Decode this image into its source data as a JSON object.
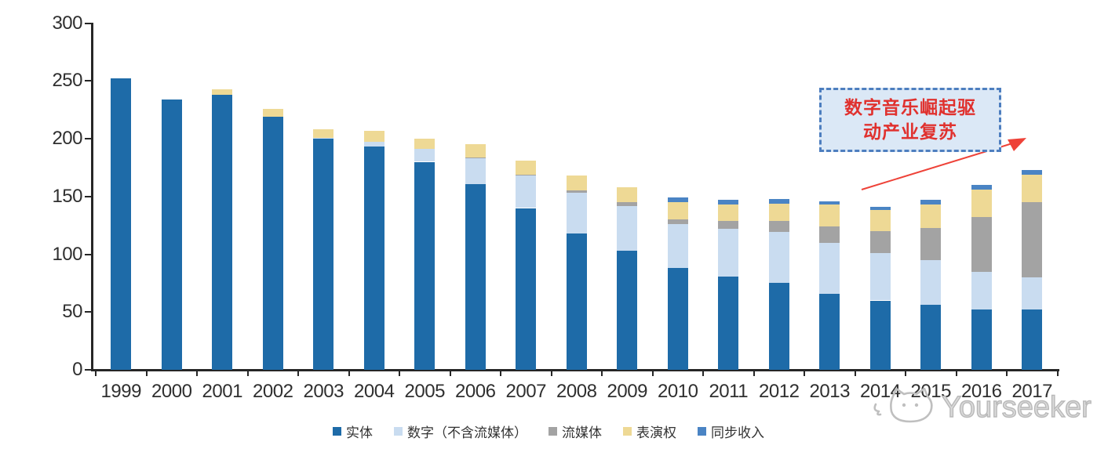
{
  "chart_data": {
    "type": "bar",
    "stacked": true,
    "title": "",
    "categories": [
      "1999",
      "2000",
      "2001",
      "2002",
      "2003",
      "2004",
      "2005",
      "2006",
      "2007",
      "2008",
      "2009",
      "2010",
      "2011",
      "2012",
      "2013",
      "2014",
      "2015",
      "2016",
      "2017"
    ],
    "series": [
      {
        "name": "实体",
        "color": "#1e6ba8",
        "values": [
          252,
          234,
          238,
          219,
          200,
          193,
          180,
          161,
          140,
          118,
          103,
          88,
          81,
          75,
          66,
          60,
          56,
          52,
          52
        ]
      },
      {
        "name": "数字（不含流媒体）",
        "color": "#c9dcf0",
        "values": [
          0,
          0,
          0,
          0,
          1,
          4,
          11,
          22,
          28,
          35,
          39,
          38,
          41,
          44,
          44,
          41,
          39,
          33,
          28
        ]
      },
      {
        "name": "流媒体",
        "color": "#a3a3a3",
        "values": [
          0,
          0,
          0,
          0,
          0,
          0,
          0,
          1,
          1,
          2,
          3,
          4,
          7,
          10,
          14,
          19,
          28,
          47,
          65
        ]
      },
      {
        "name": "表演权",
        "color": "#eed995",
        "values": [
          0,
          0,
          5,
          7,
          7,
          10,
          9,
          11,
          12,
          13,
          13,
          15,
          14,
          15,
          19,
          18,
          20,
          24,
          24
        ]
      },
      {
        "name": "同步收入",
        "color": "#4a84c4",
        "values": [
          0,
          0,
          0,
          0,
          0,
          0,
          0,
          0,
          0,
          0,
          0,
          4,
          4,
          4,
          3,
          3,
          4,
          4,
          4
        ]
      }
    ],
    "xlabel": "",
    "ylabel": "",
    "ylim": [
      0,
      300
    ],
    "yticks": [
      0,
      50,
      100,
      150,
      200,
      250,
      300
    ],
    "grid": false,
    "legend_position": "bottom"
  },
  "annotation": {
    "line1": "数字音乐崛起驱",
    "line2": "动产业复苏",
    "text_color": "#e0312e",
    "box_fill": "#dbe8f6",
    "box_border": "#4d7ebf",
    "arrow_color": "#ee4238"
  },
  "watermark": {
    "text": "Yourseeker",
    "icon": "cat-logo-icon",
    "color": "#bdbdbd"
  }
}
